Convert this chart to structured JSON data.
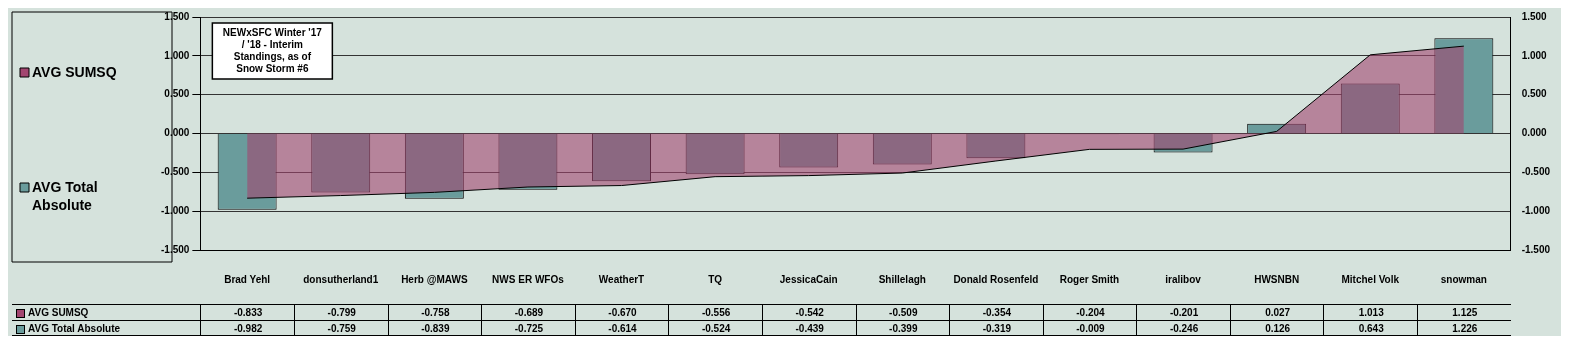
{
  "chart_data": {
    "type": "bar",
    "title": "NEWxSFC Winter '17 / '18 - Interim Standings, as of Snow Storm #6",
    "categories": [
      "Brad Yehl",
      "donsutherland1",
      "Herb @MAWS",
      "NWS ER WFOs",
      "WeatherT",
      "TQ",
      "JessicaCain",
      "Shillelagh",
      "Donald Rosenfeld",
      "Roger Smith",
      "iralibov",
      "HWSNBN",
      "Mitchel Volk",
      "snowman"
    ],
    "series": [
      {
        "name": "AVG SUMSQ",
        "type": "area",
        "color": "#a24670",
        "values": [
          -0.833,
          -0.799,
          -0.758,
          -0.689,
          -0.67,
          -0.556,
          -0.542,
          -0.509,
          -0.354,
          -0.204,
          -0.201,
          0.027,
          1.013,
          1.125
        ],
        "value_labels": [
          "-0.833",
          "-0.799",
          "-0.758",
          "-0.689",
          "-0.670",
          "-0.556",
          "-0.542",
          "-0.509",
          "-0.354",
          "-0.204",
          "-0.201",
          "0.027",
          "1.013",
          "1.125"
        ]
      },
      {
        "name": "AVG Total Absolute",
        "color": "#6a9c9c",
        "values": [
          -0.982,
          -0.759,
          -0.839,
          -0.725,
          -0.614,
          -0.524,
          -0.439,
          -0.399,
          -0.319,
          -0.009,
          -0.246,
          0.126,
          0.643,
          1.226
        ]
      }
    ],
    "ylim": [
      -1.5,
      1.5
    ],
    "yticks": [
      {
        "value": -1.5,
        "label": "-1.500"
      },
      {
        "value": -1,
        "label": "-1.000"
      },
      {
        "value": -0.5,
        "label": "-0.500"
      },
      {
        "value": 0,
        "label": "0.000"
      },
      {
        "value": 0.5,
        "label": "0.500"
      },
      {
        "value": 1,
        "label": "1.000"
      },
      {
        "value": 1.5,
        "label": "1.500"
      }
    ],
    "y2lim": [
      -1.5,
      1.5
    ],
    "y2ticks": [
      {
        "value": -1.5,
        "label": "-1.500"
      },
      {
        "value": -1,
        "label": "-1.000"
      },
      {
        "value": -0.5,
        "label": "-0.500"
      },
      {
        "value": 0,
        "label": "0.000"
      },
      {
        "value": 0.5,
        "label": "0.500"
      },
      {
        "value": 1,
        "label": "1.000"
      },
      {
        "value": 1.5,
        "label": "1.500"
      }
    ],
    "grid": "y",
    "legend": "left",
    "data_labels": true
  }
}
